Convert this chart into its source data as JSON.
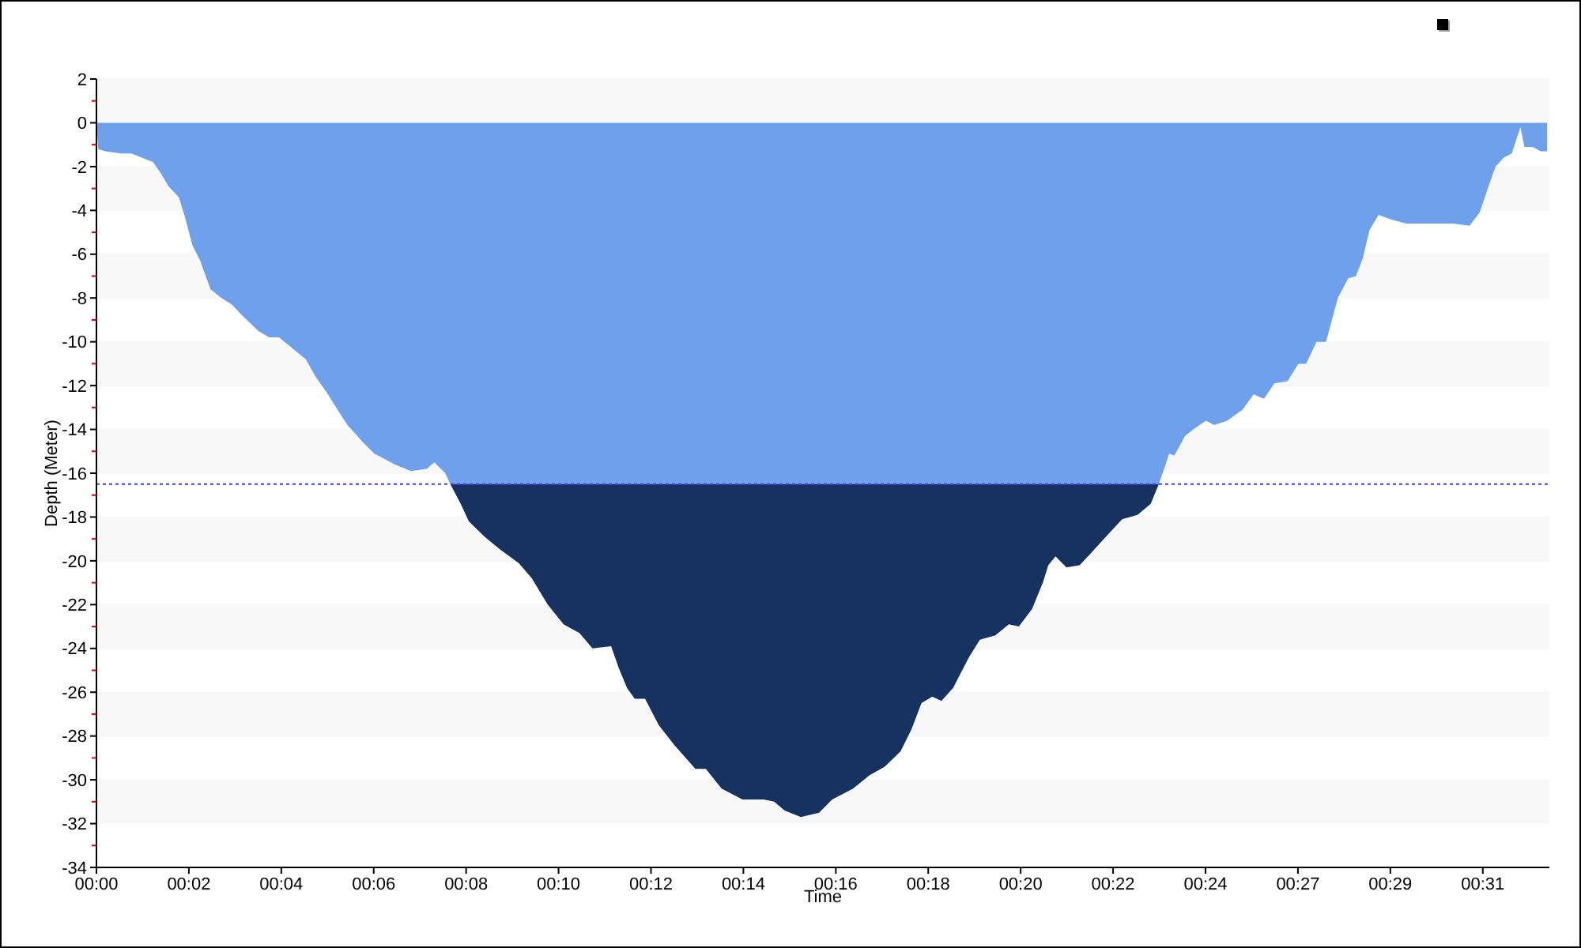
{
  "chart_data": {
    "type": "area",
    "stacked": true,
    "xlabel": "Time",
    "ylabel": "Depth (Meter)",
    "x": [
      0,
      0.04,
      0.2,
      0.54,
      0.77,
      1.01,
      1.25,
      1.42,
      1.59,
      1.82,
      1.94,
      2.12,
      2.29,
      2.52,
      2.76,
      2.99,
      3.22,
      3.57,
      3.81,
      4.03,
      4.27,
      4.62,
      4.84,
      5.08,
      5.32,
      5.54,
      5.89,
      6.13,
      6.59,
      6.94,
      7.29,
      7.46,
      7.7,
      7.81,
      8.04,
      8.22,
      8.57,
      8.92,
      9.32,
      9.61,
      9.96,
      10.31,
      10.66,
      10.95,
      11.36,
      11.53,
      11.71,
      11.88,
      12.11,
      12.41,
      12.75,
      13.22,
      13.45,
      13.8,
      14.26,
      14.73,
      14.96,
      15.19,
      15.55,
      15.95,
      16.24,
      16.7,
      17.06,
      17.4,
      17.75,
      17.99,
      18.21,
      18.45,
      18.65,
      18.91,
      19.26,
      19.5,
      19.84,
      20.14,
      20.36,
      20.65,
      20.89,
      21.01,
      21.17,
      21.41,
      21.7,
      21.93,
      22.28,
      22.64,
      22.98,
      23.27,
      23.45,
      23.68,
      23.79,
      24.03,
      24.21,
      24.49,
      24.67,
      24.96,
      25.3,
      25.54,
      25.77,
      26.0,
      26.29,
      26.53,
      26.7,
      26.93,
      27.14,
      27.4,
      27.63,
      27.8,
      27.95,
      28.1,
      28.3,
      28.56,
      28.91,
      29.49,
      29.95,
      30.31,
      30.53,
      30.71,
      30.88,
      31.06,
      31.24,
      31.43,
      31.52,
      31.7,
      31.88,
      32.02
    ],
    "series": [
      {
        "color": "#6fa0ec",
        "values": [
          0,
          -1.2,
          -1.3,
          -1.4,
          -1.4,
          -1.6,
          -1.8,
          -2.3,
          -2.9,
          -3.4,
          -4.2,
          -5.6,
          -6.3,
          -7.6,
          -8.0,
          -8.3,
          -8.8,
          -9.5,
          -9.8,
          -9.8,
          -10.2,
          -10.8,
          -11.6,
          -12.3,
          -13.1,
          -13.8,
          -14.6,
          -15.1,
          -15.6,
          -15.9,
          -15.8,
          -15.5,
          -16.0,
          -16.5,
          -16.5,
          -16.5,
          -16.5,
          -16.5,
          -16.5,
          -16.5,
          -16.5,
          -16.5,
          -16.5,
          -16.5,
          -16.5,
          -16.5,
          -16.5,
          -16.5,
          -16.5,
          -16.5,
          -16.5,
          -16.5,
          -16.5,
          -16.5,
          -16.5,
          -16.5,
          -16.5,
          -16.5,
          -16.5,
          -16.5,
          -16.5,
          -16.5,
          -16.5,
          -16.5,
          -16.5,
          -16.5,
          -16.5,
          -16.5,
          -16.5,
          -16.5,
          -16.5,
          -16.5,
          -16.5,
          -16.5,
          -16.5,
          -16.5,
          -16.5,
          -16.5,
          -16.5,
          -16.5,
          -16.5,
          -16.5,
          -16.5,
          -16.5,
          -16.5,
          -16.5,
          -16.5,
          -15.1,
          -15.2,
          -14.3,
          -14.0,
          -13.6,
          -13.8,
          -13.6,
          -13.1,
          -12.4,
          -12.6,
          -11.9,
          -11.8,
          -11.0,
          -11.0,
          -10.0,
          -10.0,
          -8.0,
          -7.1,
          -7.0,
          -6.2,
          -4.9,
          -4.2,
          -4.4,
          -4.6,
          -4.6,
          -4.6,
          -4.7,
          -4.1,
          -3.0,
          -2.0,
          -1.6,
          -1.4,
          -0.2,
          -1.1,
          -1.1,
          -1.3,
          -1.3
        ]
      },
      {
        "color": "#163260",
        "values": [
          null,
          null,
          null,
          null,
          null,
          null,
          null,
          null,
          null,
          null,
          null,
          null,
          null,
          null,
          null,
          null,
          null,
          null,
          null,
          null,
          null,
          null,
          null,
          null,
          null,
          null,
          null,
          null,
          null,
          null,
          null,
          null,
          null,
          0,
          -0.9,
          -1.7,
          -2.4,
          -3.0,
          -3.6,
          -4.3,
          -5.5,
          -6.4,
          -6.8,
          -7.5,
          -7.4,
          -8.4,
          -9.3,
          -9.8,
          -9.8,
          -11.0,
          -11.9,
          -13.0,
          -13.0,
          -13.9,
          -14.4,
          -14.4,
          -14.5,
          -14.9,
          -15.2,
          -15.0,
          -14.4,
          -13.9,
          -13.3,
          -12.9,
          -12.2,
          -11.2,
          -10.0,
          -9.7,
          -9.9,
          -9.3,
          -7.9,
          -7.1,
          -6.9,
          -6.4,
          -6.5,
          -5.7,
          -4.5,
          -3.7,
          -3.3,
          -3.8,
          -3.7,
          -3.2,
          -2.4,
          -1.6,
          -1.4,
          -0.9,
          0,
          null,
          null,
          null,
          null,
          null,
          null,
          null,
          null,
          null,
          null,
          null,
          null,
          null,
          null,
          null,
          null,
          null,
          null,
          null,
          null,
          null,
          null,
          null,
          null,
          null,
          null,
          null,
          null,
          null,
          null,
          null,
          null,
          null,
          null,
          null,
          null,
          null
        ]
      }
    ],
    "xlim": [
      0,
      32.07
    ],
    "xticks": [
      {
        "value": 0,
        "label": "00:00"
      },
      {
        "value": 2.04,
        "label": "00:02"
      },
      {
        "value": 4.08,
        "label": "00:04"
      },
      {
        "value": 6.12,
        "label": "00:06"
      },
      {
        "value": 8.16,
        "label": "00:08"
      },
      {
        "value": 10.2,
        "label": "00:10"
      },
      {
        "value": 12.24,
        "label": "00:12"
      },
      {
        "value": 14.28,
        "label": "00:14"
      },
      {
        "value": 16.32,
        "label": "00:16"
      },
      {
        "value": 18.36,
        "label": "00:18"
      },
      {
        "value": 20.4,
        "label": "00:20"
      },
      {
        "value": 22.44,
        "label": "00:22"
      },
      {
        "value": 24.48,
        "label": "00:24"
      },
      {
        "value": 26.52,
        "label": "00:27"
      },
      {
        "value": 28.56,
        "label": "00:29"
      },
      {
        "value": 30.6,
        "label": "00:31"
      }
    ],
    "ylim": [
      -34,
      2
    ],
    "yticks": [
      2,
      {
        "value": 1,
        "label": null
      },
      0,
      {
        "value": -1,
        "label": null
      },
      -2,
      {
        "value": -3,
        "label": null
      },
      -4,
      {
        "value": -5,
        "label": null
      },
      -6,
      {
        "value": -7,
        "label": null
      },
      -8,
      {
        "value": -9,
        "label": null
      },
      -10,
      {
        "value": -11,
        "label": null
      },
      -12,
      {
        "value": -13,
        "label": null
      },
      -14,
      {
        "value": -15,
        "label": null
      },
      -16,
      {
        "value": -17,
        "label": null
      },
      -18,
      {
        "value": -19,
        "label": null
      },
      -20,
      {
        "value": -21,
        "label": null
      },
      -22,
      {
        "value": -23,
        "label": null
      },
      -24,
      {
        "value": -25,
        "label": null
      },
      -26,
      {
        "value": -27,
        "label": null
      },
      -28,
      {
        "value": -29,
        "label": null
      },
      -30,
      {
        "value": -31,
        "label": null
      },
      -32,
      {
        "value": -33,
        "label": null
      },
      -34
    ],
    "grid": "y",
    "ref_lines": [
      {
        "axis": "y",
        "value": -16.5,
        "color": "#4444e6",
        "line_style": "dotted"
      }
    ]
  }
}
